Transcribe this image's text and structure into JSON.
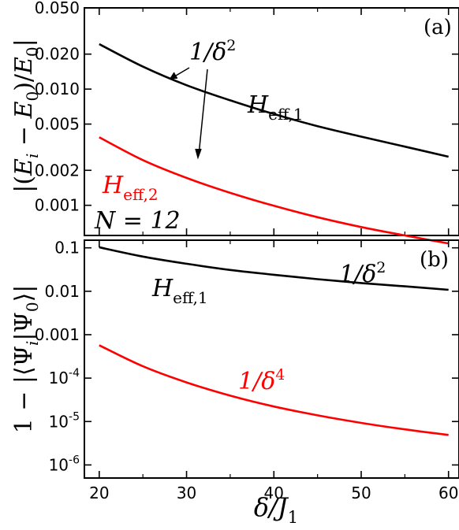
{
  "figure": {
    "xlabel_main": "δ/J",
    "xlabel_sub": "1"
  },
  "chart_data": [
    {
      "type": "line",
      "panel_label": "(a)",
      "xlim": [
        18.3,
        61.2
      ],
      "ylim": [
        0.00055,
        0.05
      ],
      "yscale": "log",
      "xticks": [
        20,
        30,
        40,
        50,
        60
      ],
      "yticks": [
        0.001,
        0.002,
        0.005,
        0.01,
        0.02,
        0.05
      ],
      "ytick_labels": [
        "0.001",
        "0.002",
        "0.005",
        "0.010",
        "0.020",
        "0.050"
      ],
      "ylabel": "|(E_i − E_0)/E_0|",
      "ylabel_parts": {
        "bar_left": "|(",
        "E1": "E",
        "sub1": "i",
        "minus": " − ",
        "E2": "E",
        "sub2": "0",
        "slash": ")/",
        "E3": "E",
        "sub3": "0",
        "bar_right": "|"
      },
      "series": [
        {
          "name": "H_eff,1",
          "color": "#000000",
          "x": [
            20,
            25,
            30,
            35,
            40,
            45,
            50,
            55,
            60
          ],
          "y": [
            0.0244,
            0.0156,
            0.0108,
            0.008,
            0.0061,
            0.0048,
            0.0039,
            0.0032,
            0.00262
          ]
        },
        {
          "name": "H_eff,2",
          "color": "#ff0000",
          "x": [
            20,
            25,
            30,
            35,
            40,
            45,
            50,
            55,
            60
          ],
          "y": [
            0.00385,
            0.00245,
            0.00172,
            0.00128,
            0.00099,
            0.00079,
            0.00065,
            0.00055,
            0.00047
          ]
        }
      ],
      "annotations": {
        "scaling": {
          "main": "1/δ",
          "sup": "2"
        },
        "series1": {
          "main": "H",
          "sub": "eff,1"
        },
        "series2": {
          "main": "H",
          "sub": "eff,2"
        },
        "size": "N = 12"
      }
    },
    {
      "type": "line",
      "panel_label": "(b)",
      "xlim": [
        18.3,
        61.2
      ],
      "ylim": [
        5e-07,
        0.15
      ],
      "yscale": "log",
      "xticks": [
        20,
        30,
        40,
        50,
        60
      ],
      "xtick_labels": [
        "20",
        "30",
        "40",
        "50",
        "60"
      ],
      "yticks": [
        0.1,
        0.01,
        0.001,
        0.0001,
        1e-05,
        1e-06
      ],
      "ytick_labels": [
        {
          "main": "0.1"
        },
        {
          "main": "0.01"
        },
        {
          "main": "0.001"
        },
        {
          "main": "10",
          "sup": "-4"
        },
        {
          "main": "10",
          "sup": "-5"
        },
        {
          "main": "10",
          "sup": "-6"
        }
      ],
      "ylabel_parts": {
        "one": "1 − |⟨",
        "psi1": "Ψ",
        "sub1": "i",
        "mid": "|",
        "psi2": "Ψ",
        "sub2": "0",
        "end": "⟩|"
      },
      "series": [
        {
          "name": "H_eff,1",
          "color": "#000000",
          "x": [
            20,
            25,
            30,
            35,
            40,
            45,
            50,
            55,
            60
          ],
          "y": [
            0.103,
            0.063,
            0.043,
            0.031,
            0.024,
            0.019,
            0.0155,
            0.013,
            0.0108
          ]
        },
        {
          "name": "1/δ^4",
          "color": "#ff0000",
          "x": [
            20,
            25,
            30,
            35,
            40,
            45,
            50,
            55,
            60
          ],
          "y": [
            0.00057,
            0.000187,
            7.95e-05,
            3.95e-05,
            2.22e-05,
            1.39e-05,
            9.3e-06,
            6.6e-06,
            4.9e-06
          ]
        }
      ],
      "annotations": {
        "scaling_black": {
          "main": "1/δ",
          "sup": "2"
        },
        "series1": {
          "main": "H",
          "sub": "eff,1"
        },
        "scaling_red": {
          "main": "1/δ",
          "sup": "4"
        }
      }
    }
  ]
}
